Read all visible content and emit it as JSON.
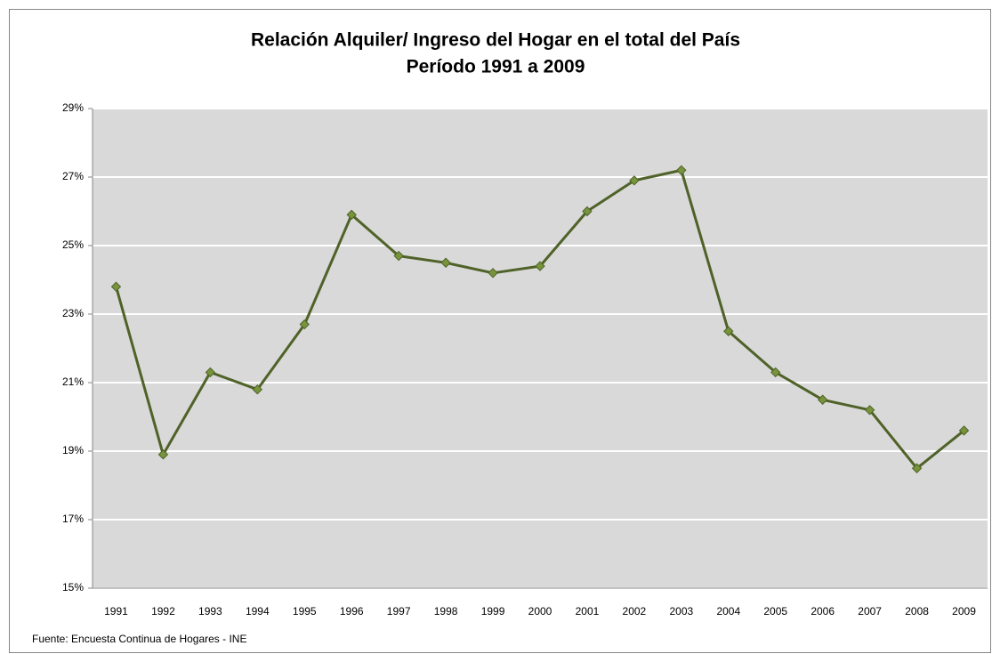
{
  "chart_data": {
    "type": "line",
    "title": "Relación Alquiler/ Ingreso del Hogar en el total del País",
    "subtitle": "Período 1991 a 2009",
    "source": "Fuente: Encuesta Continua de Hogares - INE",
    "categories": [
      "1991",
      "1992",
      "1993",
      "1994",
      "1995",
      "1996",
      "1997",
      "1998",
      "1999",
      "2000",
      "2001",
      "2002",
      "2003",
      "2004",
      "2005",
      "2006",
      "2007",
      "2008",
      "2009"
    ],
    "values": [
      23.8,
      18.9,
      21.3,
      20.8,
      22.7,
      25.9,
      24.7,
      24.5,
      24.2,
      24.4,
      26.0,
      26.9,
      27.2,
      22.5,
      21.3,
      20.5,
      20.2,
      18.5,
      19.6
    ],
    "color": "#4f6228",
    "marker_color": "#77933c",
    "ylim": [
      15,
      29
    ],
    "yticks": [
      {
        "value": 15,
        "label": "15%"
      },
      {
        "value": 17,
        "label": "17%"
      },
      {
        "value": 19,
        "label": "19%"
      },
      {
        "value": 21,
        "label": "21%"
      },
      {
        "value": 23,
        "label": "23%"
      },
      {
        "value": 25,
        "label": "25%"
      },
      {
        "value": 27,
        "label": "27%"
      },
      {
        "value": 29,
        "label": "29%"
      }
    ],
    "grid": true
  }
}
